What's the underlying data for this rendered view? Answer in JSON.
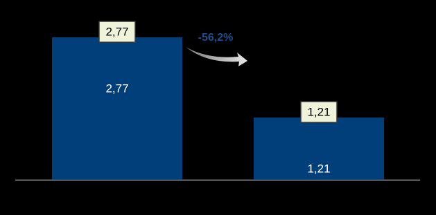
{
  "chart_data": {
    "type": "bar",
    "categories": [
      null,
      null
    ],
    "values": [
      2.77,
      1.21
    ],
    "value_labels": [
      "2,77",
      "1,21"
    ],
    "color": "#003f7a",
    "annotation": "-56,2%"
  }
}
